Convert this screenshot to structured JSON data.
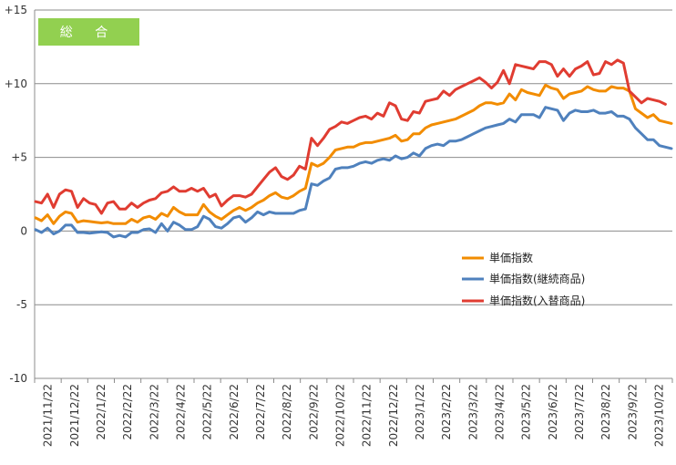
{
  "chart_data": {
    "type": "line",
    "title": "総 合",
    "title_bg_color": "#92D050",
    "ylim": [
      -10,
      15
    ],
    "y_ticks": [
      {
        "value": 15,
        "label": "+15"
      },
      {
        "value": 10,
        "label": "+10"
      },
      {
        "value": 5,
        "label": "+5"
      },
      {
        "value": 0,
        "label": "0"
      },
      {
        "value": -5,
        "label": "-5"
      },
      {
        "value": -10,
        "label": "-10"
      }
    ],
    "x_tick_labels": [
      "2021/11/22",
      "2021/12/22",
      "2022/1/22",
      "2022/2/22",
      "2022/3/22",
      "2022/4/22",
      "2022/5/22",
      "2022/6/22",
      "2022/7/22",
      "2022/8/22",
      "2022/9/22",
      "2022/10/22",
      "2022/11/22",
      "2022/12/22",
      "2023/1/22",
      "2023/2/22",
      "2023/3/22",
      "2023/4/22",
      "2023/5/22",
      "2023/6/22",
      "2023/7/22",
      "2023/8/22",
      "2023/9/22",
      "2023/10/22"
    ],
    "x_start": "2021/11/22",
    "x_step_days": 7,
    "grid": "horizontal",
    "legend_position": "right-middle",
    "series": [
      {
        "name": "単価指数",
        "color": "#F28C00",
        "values": [
          0.9,
          0.7,
          1.1,
          0.5,
          1.0,
          1.3,
          1.2,
          0.6,
          0.7,
          0.65,
          0.6,
          0.55,
          0.6,
          0.5,
          0.5,
          0.5,
          0.8,
          0.6,
          0.9,
          1.0,
          0.8,
          1.2,
          1.0,
          1.6,
          1.3,
          1.1,
          1.1,
          1.1,
          1.8,
          1.3,
          1.0,
          0.8,
          1.1,
          1.4,
          1.6,
          1.4,
          1.6,
          1.9,
          2.1,
          2.4,
          2.6,
          2.3,
          2.2,
          2.4,
          2.7,
          2.9,
          4.6,
          4.4,
          4.6,
          5.0,
          5.5,
          5.6,
          5.7,
          5.7,
          5.9,
          6.0,
          6.0,
          6.1,
          6.2,
          6.3,
          6.5,
          6.1,
          6.2,
          6.6,
          6.6,
          7.0,
          7.2,
          7.3,
          7.4,
          7.5,
          7.6,
          7.8,
          8.0,
          8.2,
          8.5,
          8.7,
          8.7,
          8.6,
          8.7,
          9.3,
          8.9,
          9.6,
          9.4,
          9.3,
          9.2,
          9.9,
          9.7,
          9.6,
          9.0,
          9.3,
          9.4,
          9.5,
          9.8,
          9.6,
          9.5,
          9.5,
          9.8,
          9.7,
          9.7,
          9.5,
          8.3,
          8.0,
          7.7,
          7.9,
          7.5,
          7.4,
          7.3
        ]
      },
      {
        "name": "単価指数(継続商品)",
        "color": "#4F81BD",
        "values": [
          0.1,
          -0.1,
          0.2,
          -0.2,
          0.0,
          0.4,
          0.4,
          -0.1,
          -0.1,
          -0.15,
          -0.1,
          -0.05,
          -0.1,
          -0.4,
          -0.3,
          -0.4,
          -0.1,
          -0.1,
          0.1,
          0.15,
          -0.1,
          0.5,
          0.0,
          0.6,
          0.4,
          0.1,
          0.1,
          0.3,
          1.0,
          0.8,
          0.3,
          0.2,
          0.5,
          0.9,
          1.0,
          0.6,
          0.9,
          1.3,
          1.1,
          1.3,
          1.2,
          1.2,
          1.2,
          1.2,
          1.4,
          1.5,
          3.2,
          3.1,
          3.4,
          3.6,
          4.2,
          4.3,
          4.3,
          4.4,
          4.6,
          4.7,
          4.6,
          4.8,
          4.9,
          4.8,
          5.1,
          4.9,
          5.0,
          5.3,
          5.1,
          5.6,
          5.8,
          5.9,
          5.8,
          6.1,
          6.1,
          6.2,
          6.4,
          6.6,
          6.8,
          7.0,
          7.1,
          7.2,
          7.3,
          7.6,
          7.4,
          7.9,
          7.9,
          7.9,
          7.7,
          8.4,
          8.3,
          8.2,
          7.5,
          8.0,
          8.2,
          8.1,
          8.1,
          8.2,
          8.0,
          8.0,
          8.1,
          7.8,
          7.8,
          7.6,
          7.0,
          6.6,
          6.2,
          6.2,
          5.8,
          5.7,
          5.6
        ]
      },
      {
        "name": "単価指数(入替商品)",
        "color": "#E03C31",
        "values": [
          2.0,
          1.9,
          2.5,
          1.6,
          2.5,
          2.8,
          2.7,
          1.6,
          2.2,
          1.9,
          1.8,
          1.2,
          1.9,
          2.0,
          1.5,
          1.5,
          1.9,
          1.6,
          1.9,
          2.1,
          2.2,
          2.6,
          2.7,
          3.0,
          2.7,
          2.7,
          2.9,
          2.7,
          2.9,
          2.3,
          2.5,
          1.7,
          2.1,
          2.4,
          2.4,
          2.3,
          2.5,
          3.0,
          3.5,
          4.0,
          4.3,
          3.7,
          3.5,
          3.8,
          4.4,
          4.2,
          6.3,
          5.8,
          6.3,
          6.9,
          7.1,
          7.4,
          7.3,
          7.5,
          7.7,
          7.8,
          7.6,
          8.0,
          7.8,
          8.7,
          8.5,
          7.6,
          7.5,
          8.1,
          8.0,
          8.8,
          8.9,
          9.0,
          9.5,
          9.2,
          9.6,
          9.8,
          10.0,
          10.2,
          10.4,
          10.1,
          9.7,
          10.1,
          10.9,
          10.0,
          11.3,
          11.2,
          11.1,
          11.0,
          11.5,
          11.5,
          11.3,
          10.5,
          11.0,
          10.5,
          11.0,
          11.2,
          11.5,
          10.6,
          10.7,
          11.5,
          11.3,
          11.6,
          11.4,
          9.5,
          9.1,
          8.7,
          9.0,
          8.9,
          8.8,
          8.6
        ]
      }
    ]
  }
}
